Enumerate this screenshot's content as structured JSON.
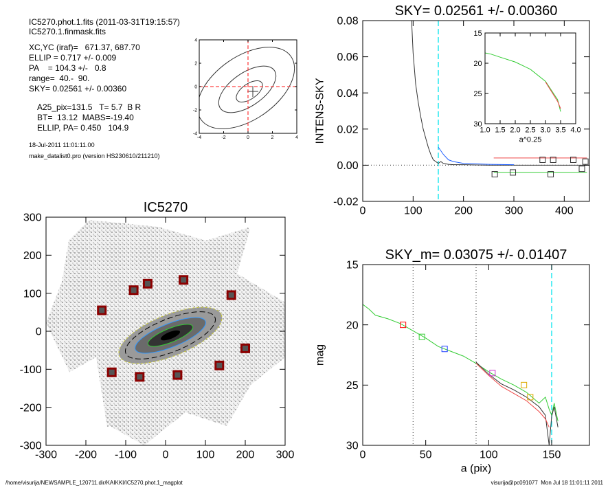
{
  "header": {
    "lines": [
      "IC5270.phot.1.fits  (2011-03-31T19:15:57)",
      "IC5270.1.finmask.fits",
      "XC,YC (iraf)=   671.37, 687.70",
      "ELLIP = 0.717 +/- 0.009",
      "PA    = 104.3 +/-   0.8",
      "range=  40.-  90.",
      "SKY= 0.02561 +/- 0.00360"
    ],
    "params": [
      "A25_pix=131.5   T= 5.7  B R",
      "BT=  13.12  MABS=-19.40",
      "ELLIP, PA= 0.450   104.9"
    ],
    "small": [
      "18-Jul-2011 11:01:11.00",
      "make_datalist0.pro (version HS230610/211210)"
    ]
  },
  "footer": {
    "left": "/home/visurija/NEWSAMPLE_120711.dir/KAIKKI/IC5270.phot.1_magplot",
    "right": "visurija@pc091077  Mon Jul 18 11:01:11 2011"
  },
  "chart_data": [
    {
      "type": "contour",
      "xlim": [
        -4,
        4
      ],
      "ylim": [
        -4,
        4
      ],
      "xticks": [
        -4,
        -2,
        0,
        2,
        4
      ],
      "yticks": [
        -4,
        -2,
        0,
        2,
        4
      ],
      "vlines": [
        {
          "x": 0,
          "color": "#ff4444",
          "dash": "5,3"
        }
      ],
      "hlines": [
        {
          "y": 0,
          "color": "#ff4444",
          "dash": "5,3"
        }
      ],
      "series": []
    },
    {
      "type": "line",
      "title": "SKY= 0.02561 +/- 0.00360",
      "ylabel": "INTENS-SKY",
      "xlim": [
        0,
        450
      ],
      "ylim": [
        -0.02,
        0.08
      ],
      "xticks": [
        0,
        100,
        200,
        300,
        400
      ],
      "yticks": [
        {
          "value": -0.02,
          "label": "-0.02"
        },
        {
          "value": 0,
          "label": "0.00"
        },
        {
          "value": 0.02,
          "label": "0.02"
        },
        {
          "value": 0.04,
          "label": "0.04"
        },
        {
          "value": 0.06,
          "label": "0.06"
        },
        {
          "value": 0.08,
          "label": "0.08"
        }
      ],
      "vlines": [
        {
          "x": 150,
          "color": "#00e5ee",
          "dash": "8,4"
        }
      ],
      "hlines": [
        {
          "y": 0,
          "color": "#555",
          "dash": "1,3"
        }
      ],
      "series": [
        {
          "color": "#333333",
          "x": [
            97,
            100,
            105,
            110,
            115,
            120,
            125,
            130,
            135,
            140,
            145,
            150,
            155,
            160,
            170,
            180,
            200,
            250,
            300,
            350,
            400,
            445
          ],
          "values": [
            0.08,
            0.062,
            0.045,
            0.035,
            0.027,
            0.02,
            0.015,
            0.01,
            0.006,
            0.003,
            0.002,
            0.001,
            0.002,
            0.001,
            0.0005,
            0.0003,
            0.0003,
            0,
            0,
            0,
            0,
            0
          ]
        },
        {
          "color": "#2060ff",
          "x": [
            150,
            160,
            170,
            180,
            200,
            250,
            300
          ],
          "values": [
            0.01,
            0.006,
            0.003,
            0.002,
            0.001,
            0.0005,
            0.0003
          ]
        },
        {
          "color": "#ee4444",
          "x": [
            260,
            445
          ],
          "values": [
            0.004,
            0.004
          ]
        },
        {
          "color": "#33cc33",
          "x": [
            260,
            445
          ],
          "values": [
            -0.004,
            -0.004
          ]
        },
        {
          "color": "#333333",
          "marker": "square",
          "x": [
            262,
            298,
            357,
            373,
            378,
            418,
            435,
            442
          ],
          "values": [
            -0.005,
            -0.004,
            0.003,
            -0.005,
            0.003,
            0.003,
            -0.002,
            0.002
          ]
        }
      ]
    },
    {
      "type": "line",
      "xlabel": "a^0.25",
      "xlim": [
        1.0,
        4.0
      ],
      "ylim": [
        30,
        15
      ],
      "xticks": [
        {
          "value": 1.0,
          "label": "1.0"
        },
        1.5,
        {
          "value": 2.0,
          "label": "2.0"
        },
        2.5,
        {
          "value": 3.0,
          "label": "3.0"
        },
        3.5,
        {
          "value": 4.0,
          "label": "4.0"
        }
      ],
      "yticks": [
        15,
        20,
        25,
        30
      ],
      "series": [
        {
          "color": "#33cc33",
          "x": [
            1.0,
            1.2,
            1.5,
            2.0,
            2.5,
            3.0,
            3.2,
            3.4,
            3.5
          ],
          "values": [
            18.3,
            18.5,
            19,
            19.8,
            21,
            23,
            24.5,
            26,
            28
          ]
        },
        {
          "color": "#ee4444",
          "x": [
            3.0,
            3.2,
            3.4,
            3.5
          ],
          "values": [
            23.1,
            24.7,
            26.3,
            27.5
          ]
        }
      ]
    },
    {
      "type": "scatter",
      "title": "IC5270",
      "xlim": [
        -300,
        300
      ],
      "ylim": [
        -300,
        300
      ],
      "xticks": [
        -300,
        -200,
        -100,
        0,
        100,
        200,
        300
      ],
      "yticks": [
        -300,
        -200,
        -100,
        0,
        100,
        200,
        300
      ],
      "series": [
        {
          "color": "#8b0000",
          "marker": "square",
          "x": [
            -160,
            -80,
            -45,
            45,
            165,
            200,
            135,
            30,
            -65,
            -135
          ],
          "values": [
            55,
            108,
            125,
            135,
            95,
            -45,
            -90,
            -115,
            -120,
            -108
          ]
        }
      ]
    },
    {
      "type": "line",
      "title": "SKY_m=  0.03075 +/- 0.01407",
      "xlabel": "a (pix)",
      "ylabel": "mag",
      "xlim": [
        0,
        180
      ],
      "ylim": [
        30,
        15
      ],
      "xticks": [
        0,
        50,
        100,
        150
      ],
      "yticks": [
        15,
        20,
        25,
        30
      ],
      "vlines": [
        {
          "x": 40,
          "color": "#555",
          "dash": "1,3"
        },
        {
          "x": 90,
          "color": "#555",
          "dash": "1,3"
        },
        {
          "x": 150,
          "color": "#00e5ee",
          "dash": "8,4"
        }
      ],
      "series": [
        {
          "color": "#33cc33",
          "x": [
            0,
            5,
            10,
            20,
            30,
            40,
            50,
            60,
            70,
            80,
            90,
            100,
            110,
            120,
            130,
            140,
            145,
            148,
            150,
            152,
            155
          ],
          "values": [
            18.3,
            18.7,
            19.2,
            19.5,
            19.9,
            20.5,
            21.1,
            21.8,
            22.2,
            22.6,
            23.2,
            23.9,
            24.5,
            25.0,
            25.6,
            26.5,
            26.0,
            27,
            27.5,
            26.5,
            28
          ]
        },
        {
          "color": "#333333",
          "x": [
            90,
            100,
            110,
            120,
            130,
            140,
            145,
            148,
            150,
            152,
            155
          ],
          "values": [
            23.1,
            24.1,
            24.9,
            25.4,
            26.0,
            26.8,
            27.5,
            30,
            27.6,
            26.8,
            28.5
          ]
        },
        {
          "color": "#ee4444",
          "x": [
            90,
            100,
            110,
            120,
            130,
            140,
            145,
            148
          ],
          "values": [
            23.2,
            24.2,
            25.1,
            25.7,
            26.3,
            27.2,
            27.8,
            28.5
          ]
        },
        {
          "color": "#ff0000",
          "marker": "square",
          "x": [
            32
          ],
          "values": [
            20
          ]
        },
        {
          "color": "#33cc33",
          "marker": "square",
          "x": [
            47
          ],
          "values": [
            21
          ]
        },
        {
          "color": "#2040ff",
          "marker": "square",
          "x": [
            65
          ],
          "values": [
            22
          ]
        },
        {
          "color": "#cc33cc",
          "marker": "square",
          "x": [
            103
          ],
          "values": [
            24
          ]
        },
        {
          "color": "#ddaa00",
          "marker": "square",
          "x": [
            128,
            133
          ],
          "values": [
            25,
            26
          ]
        }
      ]
    }
  ]
}
